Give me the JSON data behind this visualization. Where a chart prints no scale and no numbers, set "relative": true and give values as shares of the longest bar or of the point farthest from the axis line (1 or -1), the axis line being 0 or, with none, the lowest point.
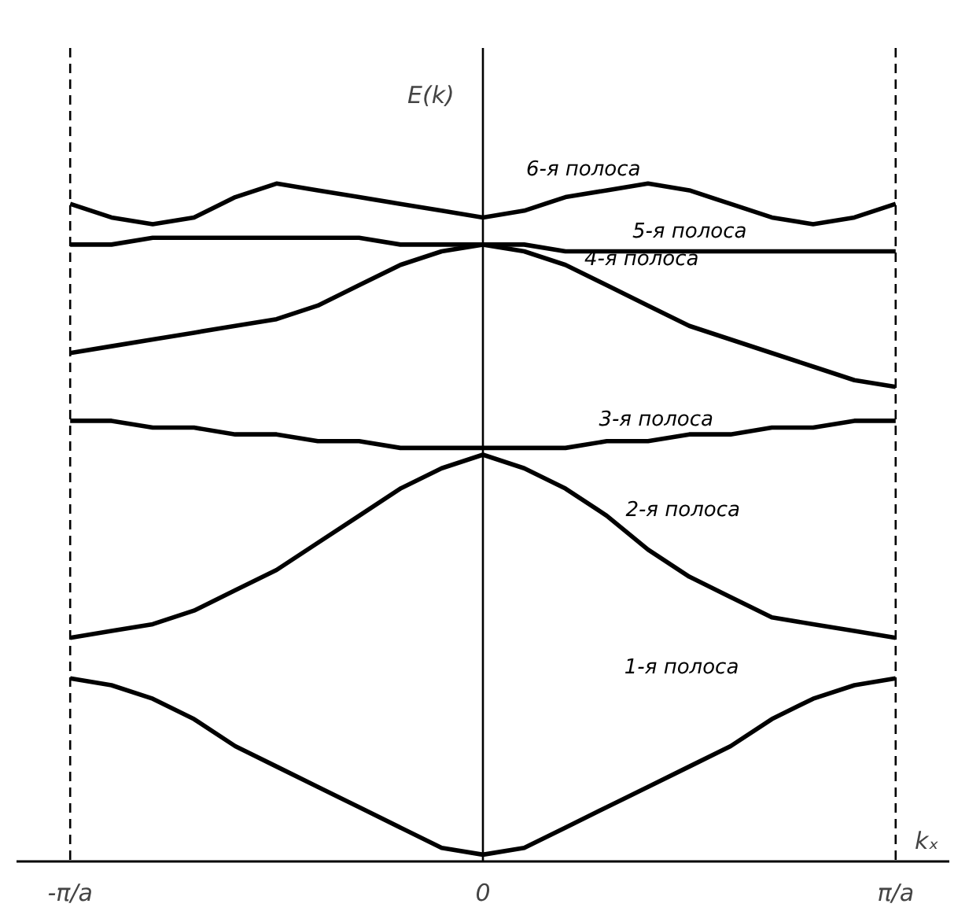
{
  "chart_data": {
    "type": "line",
    "relative": true,
    "ylabel": "E(k)",
    "xlabel": "kₓ",
    "categories": [
      "-π/a",
      null,
      null,
      null,
      null,
      null,
      null,
      null,
      null,
      null,
      "0",
      null,
      null,
      null,
      null,
      null,
      null,
      null,
      null,
      null,
      "π/a"
    ],
    "legend": false,
    "grid": false,
    "marker": "none",
    "line_style": "solid",
    "ref_lines": [
      {
        "axis": "x",
        "value": "-π/a",
        "line_style": "dashed",
        "color": "#000000"
      },
      {
        "axis": "x",
        "value": "π/a",
        "line_style": "dashed",
        "color": "#000000"
      },
      {
        "axis": "x",
        "value": "0",
        "line_style": "solid",
        "color": "#000000"
      }
    ],
    "series": [
      {
        "name": "1-я полоса",
        "color": "#000000",
        "values": [
          0.27,
          0.26,
          0.24,
          0.21,
          0.17,
          0.14,
          0.11,
          0.08,
          0.05,
          0.02,
          0.01,
          0.02,
          0.05,
          0.08,
          0.11,
          0.14,
          0.17,
          0.21,
          0.24,
          0.26,
          0.27
        ]
      },
      {
        "name": "2-я полоса",
        "color": "#000000",
        "values": [
          0.33,
          0.34,
          0.35,
          0.37,
          0.4,
          0.43,
          0.47,
          0.51,
          0.55,
          0.58,
          0.6,
          0.58,
          0.55,
          0.51,
          0.46,
          0.42,
          0.39,
          0.36,
          0.35,
          0.34,
          0.33
        ]
      },
      {
        "name": "3-я полоса",
        "color": "#000000",
        "values": [
          0.65,
          0.65,
          0.64,
          0.64,
          0.63,
          0.63,
          0.62,
          0.62,
          0.61,
          0.61,
          0.61,
          0.61,
          0.61,
          0.62,
          0.62,
          0.63,
          0.63,
          0.64,
          0.64,
          0.65,
          0.65
        ]
      },
      {
        "name": "4-я полоса",
        "color": "#000000",
        "values": [
          0.75,
          0.76,
          0.77,
          0.78,
          0.79,
          0.8,
          0.82,
          0.85,
          0.88,
          0.9,
          0.91,
          0.9,
          0.88,
          0.85,
          0.82,
          0.79,
          0.77,
          0.75,
          0.73,
          0.71,
          0.7
        ]
      },
      {
        "name": "5-я полоса",
        "color": "#000000",
        "values": [
          0.91,
          0.91,
          0.92,
          0.92,
          0.92,
          0.92,
          0.92,
          0.92,
          0.91,
          0.91,
          0.91,
          0.91,
          0.9,
          0.9,
          0.9,
          0.9,
          0.9,
          0.9,
          0.9,
          0.9,
          0.9
        ]
      },
      {
        "name": "6-я полоса",
        "color": "#000000",
        "values": [
          0.97,
          0.95,
          0.94,
          0.95,
          0.98,
          1.0,
          0.99,
          0.98,
          0.97,
          0.96,
          0.95,
          0.96,
          0.98,
          0.99,
          1.0,
          0.99,
          0.97,
          0.95,
          0.94,
          0.95,
          0.97
        ]
      }
    ]
  }
}
